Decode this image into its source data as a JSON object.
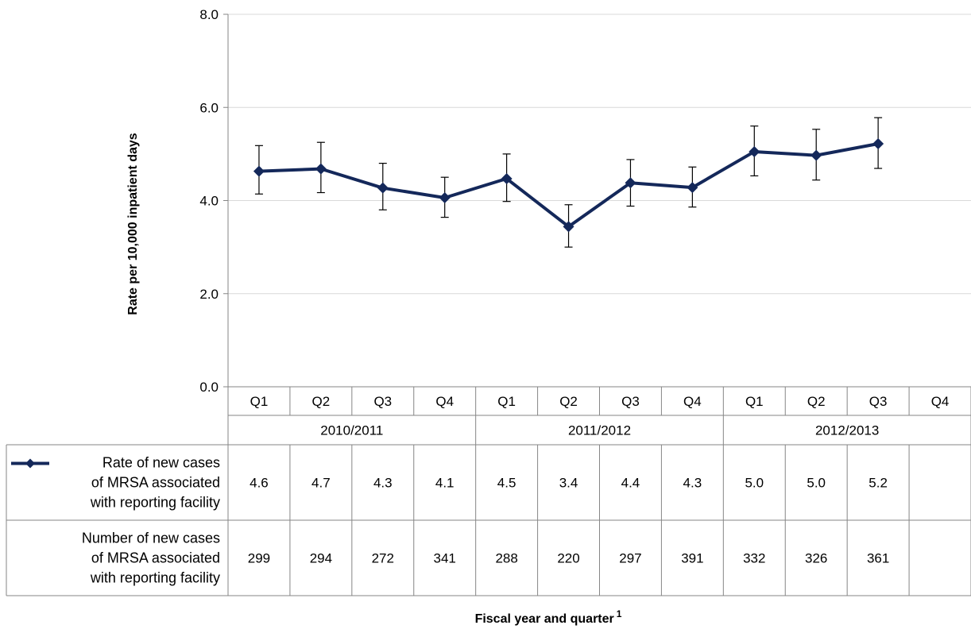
{
  "chart_data": {
    "type": "line",
    "ylabel": "Rate per 10,000 inpatient days",
    "xlabel": "Fiscal year and quarter",
    "xlabel_superscript": "1",
    "ylim": [
      0,
      8
    ],
    "y_ticks": [
      "0.0",
      "2.0",
      "4.0",
      "6.0",
      "8.0"
    ],
    "grid": true,
    "quarters": [
      "Q1",
      "Q2",
      "Q3",
      "Q4",
      "Q1",
      "Q2",
      "Q3",
      "Q4",
      "Q1",
      "Q2",
      "Q3",
      "Q4"
    ],
    "years": [
      {
        "label": "2010/2011",
        "span": 4
      },
      {
        "label": "2011/2012",
        "span": 4
      },
      {
        "label": "2012/2013",
        "span": 4
      }
    ],
    "series": [
      {
        "name": "Rate of new cases of MRSA associated with reporting facility",
        "name_lines": [
          "Rate of new cases",
          "of MRSA associated",
          "with reporting facility"
        ],
        "color": "#14285a",
        "values": [
          4.63,
          4.68,
          4.27,
          4.06,
          4.47,
          3.44,
          4.38,
          4.28,
          5.05,
          4.97,
          5.22,
          null
        ],
        "error_low": [
          4.14,
          4.17,
          3.8,
          3.64,
          3.98,
          3.0,
          3.88,
          3.86,
          4.53,
          4.44,
          4.69,
          null
        ],
        "error_high": [
          5.18,
          5.25,
          4.8,
          4.5,
          5.0,
          3.91,
          4.88,
          4.72,
          5.6,
          5.53,
          5.78,
          null
        ]
      }
    ],
    "table_rows": [
      {
        "label_lines": [
          "Rate of new cases",
          "of MRSA associated",
          "with reporting facility"
        ],
        "has_legend_marker": true,
        "values": [
          "4.6",
          "4.7",
          "4.3",
          "4.1",
          "4.5",
          "3.4",
          "4.4",
          "4.3",
          "5.0",
          "5.0",
          "5.2",
          ""
        ]
      },
      {
        "label_lines": [
          "Number of new cases",
          "of MRSA associated",
          "with reporting facility"
        ],
        "has_legend_marker": false,
        "values": [
          "299",
          "294",
          "272",
          "341",
          "288",
          "220",
          "297",
          "391",
          "332",
          "326",
          "361",
          ""
        ]
      }
    ]
  }
}
